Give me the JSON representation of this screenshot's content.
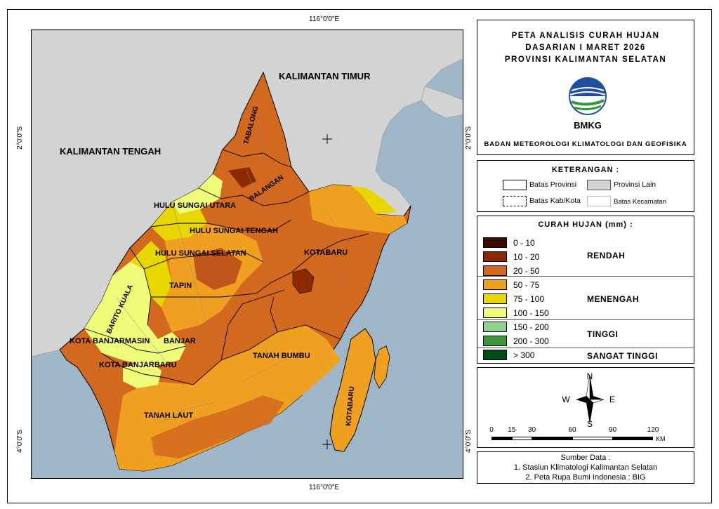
{
  "coords": {
    "top": "116°0'0\"E",
    "bottom": "116°0'0\"E",
    "left_upper": "2°0'0\"S",
    "left_lower": "4°0'0\"S",
    "right_upper": "2°0'0\"S",
    "right_lower": "4°0'0\"S"
  },
  "title": {
    "line1": "PETA ANALISIS CURAH HUJAN",
    "line2": "DASARIAN I MARET 2026",
    "line3": "PROVINSI KALIMANTAN SELATAN",
    "logo_text": "BMKG",
    "agency": "BADAN METEOROLOGI KLIMATOLOGI DAN GEOFISIKA"
  },
  "keterangan": {
    "heading": "KETERANGAN :",
    "batas_provinsi": "Batas Provinsi",
    "provinsi_lain": "Provinsi Lain",
    "batas_kab_kota": "Batas Kab/Kota",
    "batas_kecamatan": "Batas Kecamatan"
  },
  "curah_hujan": {
    "heading": "CURAH HUJAN (mm) :",
    "classes": [
      {
        "range": "0 - 10",
        "color": "#3b0b00"
      },
      {
        "range": "10 - 20",
        "color": "#8b2a00"
      },
      {
        "range": "20 - 50",
        "color": "#d2691e"
      },
      {
        "range": "50 - 75",
        "color": "#f0a020"
      },
      {
        "range": "75 - 100",
        "color": "#e8d600"
      },
      {
        "range": "100 - 150",
        "color": "#eefc7a"
      },
      {
        "range": "150 - 200",
        "color": "#8fd18f"
      },
      {
        "range": "200 - 300",
        "color": "#3a9a3a"
      },
      {
        "range": "> 300",
        "color": "#004d1a"
      }
    ],
    "categories": {
      "rendah": "RENDAH",
      "menengah": "MENENGAH",
      "tinggi": "TINGGI",
      "sangat_tinggi": "SANGAT TINGGI"
    }
  },
  "compass": {
    "n": "N",
    "s": "S",
    "e": "E",
    "w": "W"
  },
  "scale": {
    "ticks": [
      "0",
      "15",
      "30",
      "60",
      "90",
      "120"
    ],
    "unit": "KM"
  },
  "sumber": {
    "heading": "Sumber Data :",
    "line1": "1. Stasiun Klimatologi Kalimantan Selatan",
    "line2": "2. Peta Rupa Bumi Indonesia : BIG"
  },
  "map_labels": {
    "kalteng": "KALIMANTAN TENGAH",
    "kaltim": "KALIMANTAN TIMUR",
    "tabalong": "TABALONG",
    "balangan": "BALANGAN",
    "hsu": "HULU SUNGAI UTARA",
    "hst": "HULU SUNGAI TENGAH",
    "hss": "HULU SUNGAI SELATAN",
    "tapin": "TAPIN",
    "barito_kuala": "BARITO KUALA",
    "kota_banjarmasin": "KOTA BANJARMASIN",
    "banjar": "BANJAR",
    "kota_banjarbaru": "KOTA BANJARBARU",
    "tanah_laut": "TANAH LAUT",
    "tanah_bumbu": "TANAH BUMBU",
    "kotabaru_main": "KOTABARU",
    "kotabaru_island": "KOTABARU"
  },
  "colors": {
    "sea": "#9fb6c8",
    "other_province": "#d3d3d3"
  }
}
